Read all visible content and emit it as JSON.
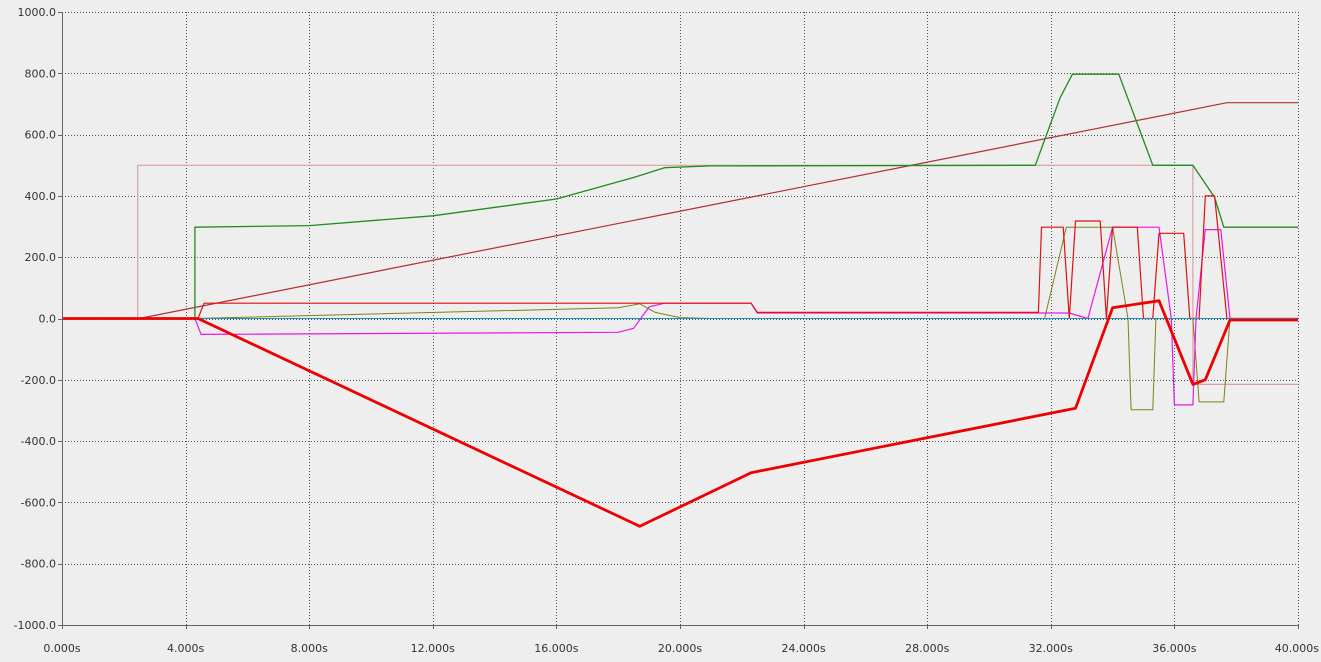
{
  "chart_data": {
    "type": "line",
    "title": "",
    "xlabel": "",
    "ylabel": "",
    "xlim": [
      0,
      40
    ],
    "ylim": [
      -1000,
      1000
    ],
    "grid": true,
    "x_ticks": [
      0,
      4,
      8,
      12,
      16,
      20,
      24,
      28,
      32,
      36,
      40
    ],
    "x_tick_labels": [
      "0.000s",
      "4.000s",
      "8.000s",
      "12.000s",
      "16.000s",
      "20.000s",
      "24.000s",
      "28.000s",
      "32.000s",
      "36.000s",
      "40.000s"
    ],
    "y_ticks": [
      1000,
      800,
      600,
      400,
      200,
      0,
      -200,
      -400,
      -600,
      -800,
      -1000
    ],
    "y_tick_labels": [
      "1000.0",
      "800.0",
      "600.0",
      "400.0",
      "200.0",
      "0.0",
      "-200.0",
      "-400.0",
      "-600.0",
      "-800.0",
      "-1000.0"
    ],
    "series": [
      {
        "color": "#d9a0a0",
        "width": 1.2,
        "points": [
          [
            0,
            0
          ],
          [
            2.45,
            0
          ],
          [
            2.45,
            500
          ],
          [
            36.6,
            500
          ],
          [
            36.6,
            -215
          ],
          [
            40,
            -215
          ]
        ]
      },
      {
        "color": "#b03030",
        "width": 1.2,
        "points": [
          [
            0,
            0
          ],
          [
            2.5,
            0
          ],
          [
            37.7,
            704
          ],
          [
            40,
            704
          ]
        ]
      },
      {
        "color": "#1e8c1e",
        "width": 1.3,
        "points": [
          [
            0,
            0
          ],
          [
            4.3,
            0
          ],
          [
            4.3,
            298
          ],
          [
            8,
            303
          ],
          [
            12,
            335
          ],
          [
            16,
            390
          ],
          [
            18.5,
            460
          ],
          [
            19.5,
            492
          ],
          [
            21,
            498
          ],
          [
            31.5,
            500
          ],
          [
            32.3,
            720
          ],
          [
            32.7,
            797
          ],
          [
            34.2,
            797
          ],
          [
            35.3,
            500
          ],
          [
            36.6,
            500
          ],
          [
            37.3,
            395
          ],
          [
            37.6,
            298
          ],
          [
            40,
            298
          ]
        ]
      },
      {
        "color": "#808018",
        "width": 1.0,
        "points": [
          [
            0,
            0
          ],
          [
            4.3,
            0
          ],
          [
            18,
            35
          ],
          [
            18.7,
            48
          ],
          [
            19.2,
            20
          ],
          [
            20,
            3
          ],
          [
            21,
            0
          ],
          [
            31.8,
            0
          ],
          [
            32.5,
            298
          ],
          [
            34,
            298
          ],
          [
            34.5,
            0
          ],
          [
            34.6,
            -298
          ],
          [
            35.3,
            -298
          ],
          [
            35.4,
            0
          ],
          [
            36.6,
            0
          ],
          [
            36.8,
            -272
          ],
          [
            37.6,
            -272
          ],
          [
            37.8,
            0
          ],
          [
            40,
            0
          ]
        ]
      },
      {
        "color": "#e818e8",
        "width": 1.2,
        "points": [
          [
            0,
            0
          ],
          [
            4.3,
            0
          ],
          [
            4.5,
            -52
          ],
          [
            18,
            -45
          ],
          [
            18.5,
            -32
          ],
          [
            19,
            38
          ],
          [
            19.5,
            50
          ],
          [
            22.3,
            50
          ],
          [
            22.5,
            18
          ],
          [
            31.5,
            18
          ],
          [
            32.6,
            18
          ],
          [
            33.2,
            0
          ],
          [
            34,
            298
          ],
          [
            35.5,
            298
          ],
          [
            35.9,
            0
          ],
          [
            36.0,
            -282
          ],
          [
            36.6,
            -282
          ],
          [
            36.7,
            0
          ],
          [
            37.0,
            290
          ],
          [
            37.5,
            290
          ],
          [
            37.8,
            0
          ],
          [
            40,
            0
          ]
        ]
      },
      {
        "color": "#dd1111",
        "width": 1.2,
        "points": [
          [
            0,
            0
          ],
          [
            4.4,
            0
          ],
          [
            4.6,
            50
          ],
          [
            22.3,
            50
          ],
          [
            22.5,
            20
          ],
          [
            31.6,
            20
          ],
          [
            31.7,
            298
          ],
          [
            32.4,
            298
          ],
          [
            32.6,
            0
          ],
          [
            32.8,
            318
          ],
          [
            33.6,
            318
          ],
          [
            33.8,
            0
          ],
          [
            34,
            298
          ],
          [
            34.8,
            298
          ],
          [
            35,
            0
          ],
          [
            35.3,
            0
          ],
          [
            35.5,
            278
          ],
          [
            36.3,
            278
          ],
          [
            36.5,
            0
          ],
          [
            36.8,
            0
          ],
          [
            37.0,
            400
          ],
          [
            37.3,
            400
          ],
          [
            37.7,
            0
          ],
          [
            40,
            0
          ]
        ]
      },
      {
        "color": "#3333cc",
        "width": 1.0,
        "points": [
          [
            0,
            0
          ],
          [
            40,
            0
          ]
        ]
      },
      {
        "color": "#1bb0b0",
        "width": 0.8,
        "points": [
          [
            0,
            0
          ],
          [
            40,
            0
          ]
        ]
      },
      {
        "color": "#ee0000",
        "width": 2.8,
        "points": [
          [
            0,
            0
          ],
          [
            4.4,
            0
          ],
          [
            18.7,
            -678
          ],
          [
            22.3,
            -503
          ],
          [
            32.8,
            -293
          ],
          [
            34.0,
            35
          ],
          [
            35.5,
            58
          ],
          [
            36.6,
            -215
          ],
          [
            37.0,
            -200
          ],
          [
            37.8,
            -5
          ],
          [
            40,
            -5
          ]
        ]
      }
    ]
  }
}
